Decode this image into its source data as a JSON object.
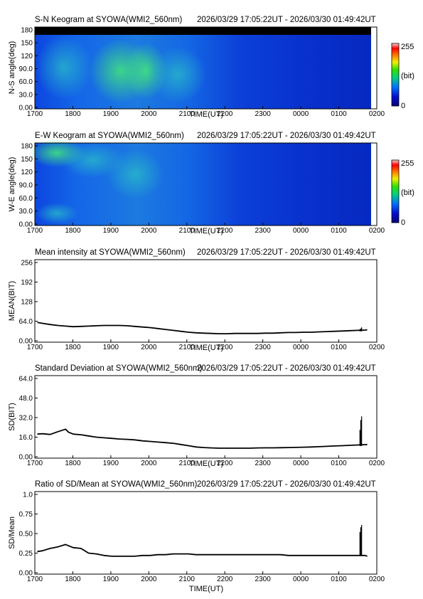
{
  "chart_data": [
    {
      "id": "sn",
      "type": "heatmap",
      "title": "S-N Keogram at SYOWA(WMI2_560nm)",
      "time_range": "2026/03/29 17:05:22UT - 2026/03/30 01:49:42UT",
      "xlabel": "TIME(UT)",
      "ylabel": "N-S angle(deg)",
      "x_ticks": [
        "1700",
        "1800",
        "1900",
        "2000",
        "2100",
        "2200",
        "2300",
        "0000",
        "0100",
        "0200"
      ],
      "y_ticks": [
        "0.00",
        "30.0",
        "60.0",
        "90.0",
        "120",
        "150",
        "180"
      ],
      "colorbar": {
        "max_label": "255",
        "unit_label": "(bit)",
        "min_label": "0"
      }
    },
    {
      "id": "ew",
      "type": "heatmap",
      "title": "E-W Keogram at SYOWA(WMI2_560nm)",
      "time_range": "2026/03/29 17:05:22UT - 2026/03/30 01:49:42UT",
      "xlabel": "TIME(UT)",
      "ylabel": "W-E angle(deg)",
      "x_ticks": [
        "1700",
        "1800",
        "1900",
        "2000",
        "2100",
        "2200",
        "2300",
        "0000",
        "0100",
        "0200"
      ],
      "y_ticks": [
        "0.00",
        "30.0",
        "60.0",
        "90.0",
        "120",
        "150",
        "180"
      ],
      "colorbar": {
        "max_label": "255",
        "unit_label": "(bit)",
        "min_label": "0"
      }
    },
    {
      "id": "mean",
      "type": "line",
      "title": "Mean intensity at SYOWA(WMI2_560nm)",
      "time_range": "2026/03/29 17:05:22UT - 2026/03/30 01:49:42UT",
      "xlabel": "TIME(UT)",
      "ylabel": "MEAN(BIT)",
      "ylim": [
        0,
        256
      ],
      "x_ticks": [
        "1700",
        "1800",
        "1900",
        "2000",
        "2100",
        "2200",
        "2300",
        "0000",
        "0100",
        "0200"
      ],
      "y_ticks": [
        "0.00",
        "64.0",
        "128",
        "192",
        "256"
      ],
      "x": [
        17.08,
        17.25,
        17.5,
        17.75,
        18.0,
        18.25,
        18.5,
        18.75,
        19.0,
        19.25,
        19.5,
        19.75,
        20.0,
        20.25,
        20.5,
        20.75,
        21.0,
        21.25,
        21.5,
        21.75,
        22.0,
        22.25,
        22.5,
        22.75,
        23.0,
        23.25,
        23.5,
        23.75,
        24.0,
        24.25,
        24.5,
        24.75,
        25.0,
        25.25,
        25.5,
        25.75,
        26.0,
        26.25,
        26.5,
        26.75,
        27.0,
        27.25,
        27.5,
        27.75,
        27.82
      ],
      "values": [
        60,
        57,
        53,
        50,
        48,
        46,
        47,
        48,
        49,
        50,
        50,
        50,
        49,
        47,
        45,
        43,
        40,
        37,
        34,
        31,
        28,
        26,
        25,
        24,
        23,
        23,
        24,
        24,
        24,
        24,
        25,
        25,
        26,
        27,
        27,
        28,
        28,
        29,
        30,
        31,
        32,
        33,
        34,
        35,
        36
      ],
      "spike": {
        "x": 27.58,
        "values": [
          38,
          40,
          44
        ]
      }
    },
    {
      "id": "sd",
      "type": "line",
      "title": "Standard Deviation at SYOWA(WMI2_560nm)",
      "time_range": "2026/03/29 17:05:22UT - 2026/03/30 01:49:42UT",
      "xlabel": "TIME(UT)",
      "ylabel": "SD(BIT)",
      "ylim": [
        0,
        64
      ],
      "x_ticks": [
        "1700",
        "1800",
        "1900",
        "2000",
        "2100",
        "2200",
        "2300",
        "0000",
        "0100",
        "0200"
      ],
      "y_ticks": [
        "0.00",
        "16.0",
        "32.0",
        "48.0",
        "64.0"
      ],
      "x": [
        17.08,
        17.25,
        17.5,
        17.75,
        18.0,
        18.1,
        18.25,
        18.5,
        18.75,
        19.0,
        19.25,
        19.5,
        19.75,
        20.0,
        20.25,
        20.5,
        20.75,
        21.0,
        21.25,
        21.5,
        21.75,
        22.0,
        22.25,
        22.5,
        22.75,
        23.0,
        23.25,
        23.5,
        23.75,
        24.0,
        24.25,
        24.5,
        24.75,
        25.0,
        25.25,
        25.5,
        25.75,
        26.0,
        26.25,
        26.5,
        26.75,
        27.0,
        27.25,
        27.5,
        27.75,
        27.82
      ],
      "values": [
        18.5,
        18.8,
        18.2,
        20.5,
        22.5,
        20.0,
        18.5,
        18.0,
        17.0,
        16.0,
        15.5,
        15.0,
        14.5,
        14.2,
        13.8,
        13.0,
        12.5,
        12.0,
        11.5,
        11.0,
        10.0,
        9.0,
        8.0,
        7.5,
        7.2,
        7.0,
        7.0,
        7.0,
        7.0,
        7.0,
        7.2,
        7.3,
        7.3,
        7.4,
        7.5,
        7.6,
        7.8,
        8.0,
        8.2,
        8.5,
        8.8,
        9.0,
        9.3,
        9.6,
        9.9,
        10.0
      ],
      "spike": {
        "x": 27.58,
        "values": [
          22,
          30,
          33
        ]
      }
    },
    {
      "id": "ratio",
      "type": "line",
      "title": "Ratio of SD/Mean at SYOWA(WMI2_560nm)",
      "time_range": "2026/03/29 17:05:22UT - 2026/03/30 01:49:42UT",
      "xlabel": "TIME(UT)",
      "ylabel": "SD/Mean",
      "ylim": [
        0,
        1
      ],
      "x_ticks": [
        "1700",
        "1800",
        "1900",
        "2000",
        "2100",
        "2200",
        "2300",
        "0000",
        "0100",
        "0200"
      ],
      "y_ticks": [
        "0.00",
        "0.25",
        "0.50",
        "0.75",
        "1.0"
      ],
      "x": [
        17.08,
        17.25,
        17.5,
        17.75,
        18.0,
        18.25,
        18.5,
        18.75,
        19.0,
        19.25,
        19.5,
        19.75,
        20.0,
        20.25,
        20.5,
        20.75,
        21.0,
        21.25,
        21.5,
        21.75,
        22.0,
        22.25,
        22.5,
        22.75,
        23.0,
        23.25,
        23.5,
        23.75,
        24.0,
        24.25,
        24.5,
        24.75,
        25.0,
        25.25,
        25.5,
        25.75,
        26.0,
        26.25,
        26.5,
        26.75,
        27.0,
        27.25,
        27.5,
        27.75,
        27.82
      ],
      "values": [
        0.27,
        0.28,
        0.31,
        0.33,
        0.36,
        0.32,
        0.31,
        0.25,
        0.24,
        0.22,
        0.21,
        0.21,
        0.21,
        0.21,
        0.22,
        0.22,
        0.23,
        0.23,
        0.24,
        0.24,
        0.24,
        0.23,
        0.23,
        0.23,
        0.23,
        0.23,
        0.23,
        0.23,
        0.23,
        0.23,
        0.23,
        0.23,
        0.23,
        0.22,
        0.22,
        0.22,
        0.22,
        0.22,
        0.22,
        0.22,
        0.22,
        0.22,
        0.22,
        0.22,
        0.21
      ],
      "spike": {
        "x": 27.58,
        "values": [
          0.52,
          0.58,
          0.61
        ]
      }
    }
  ]
}
